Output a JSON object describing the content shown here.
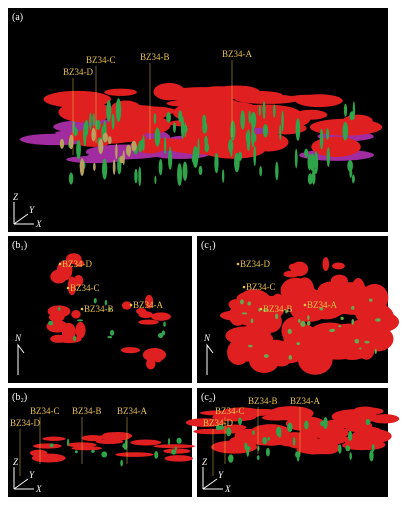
{
  "panels": [
    {
      "label": "(a)",
      "wells": [
        "BZ34-D",
        "BZ34-C",
        "BZ34-B",
        "BZ34-A"
      ],
      "axes": [
        "Z",
        "Y",
        "X"
      ]
    },
    {
      "label": "(b₁)",
      "wells": [
        "BZ34-D",
        "BZ34-C",
        "BZ34-B",
        "BZ34-A"
      ],
      "axes": [
        "N"
      ]
    },
    {
      "label": "(c₁)",
      "wells": [
        "BZ34-D",
        "BZ34-C",
        "BZ34-B",
        "BZ34-A"
      ],
      "axes": [
        "N"
      ]
    },
    {
      "label": "(b₂)",
      "wells": [
        "BZ34-D",
        "BZ34-C",
        "BZ34-B",
        "BZ34-A"
      ],
      "axes": [
        "Z",
        "Y",
        "X"
      ]
    },
    {
      "label": "(c₂)",
      "wells": [
        "BZ34-D",
        "BZ34-C",
        "BZ34-B",
        "BZ34-A"
      ],
      "axes": [
        "Z",
        "Y",
        "X"
      ]
    }
  ]
}
